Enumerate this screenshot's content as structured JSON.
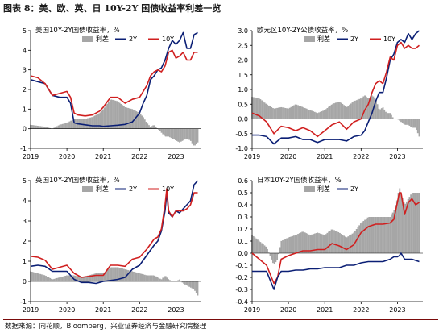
{
  "figure": {
    "title": "图表 8：美、欧、英、日 10Y-2Y 国债收益率利差一览",
    "source": "数据来源：同花顺，Bloomberg，兴业证券经济与金融研究院整理"
  },
  "colors": {
    "spread": "#a6a6a6",
    "two_year": "#0b1f75",
    "ten_year": "#d01f1f",
    "axis": "#000000"
  },
  "chart_data": [
    {
      "type": "line",
      "title": "美国10Y-2Y国债收益率，%",
      "legend": [
        "利差",
        "2Y",
        "10Y"
      ],
      "legend_placement": "top",
      "xlim": [
        2019.0,
        2023.7
      ],
      "ylim": [
        -1,
        5
      ],
      "yticks": [
        "-1",
        "0",
        "1",
        "2",
        "3",
        "4",
        "5"
      ],
      "ytick_values": [
        -1,
        0,
        1,
        2,
        3,
        4,
        5
      ],
      "xticks": [
        "2019",
        "2020",
        "2021",
        "2022",
        "2023"
      ],
      "xtick_values": [
        2019,
        2020,
        2021,
        2022,
        2023
      ],
      "grid": false,
      "x": [
        2019.0,
        2019.2,
        2019.4,
        2019.6,
        2019.8,
        2020.0,
        2020.1,
        2020.2,
        2020.3,
        2020.5,
        2020.7,
        2020.9,
        2021.0,
        2021.2,
        2021.4,
        2021.6,
        2021.8,
        2022.0,
        2022.1,
        2022.2,
        2022.3,
        2022.4,
        2022.5,
        2022.6,
        2022.7,
        2022.8,
        2022.9,
        2023.0,
        2023.1,
        2023.2,
        2023.3,
        2023.4,
        2023.5,
        2023.6
      ],
      "series": [
        {
          "name": "利差",
          "role": "spread",
          "values": [
            0.2,
            0.15,
            0.1,
            0.0,
            0.2,
            0.3,
            0.4,
            0.5,
            0.5,
            0.5,
            0.6,
            0.8,
            1.0,
            1.5,
            1.4,
            1.1,
            1.0,
            0.8,
            0.6,
            0.3,
            0.1,
            0.2,
            0.0,
            -0.2,
            -0.4,
            -0.4,
            -0.5,
            -0.6,
            -0.7,
            -0.6,
            -0.5,
            -0.6,
            -0.9,
            -0.7
          ]
        },
        {
          "name": "2Y",
          "role": "two_year",
          "values": [
            2.5,
            2.4,
            2.3,
            1.7,
            1.6,
            1.6,
            1.3,
            0.3,
            0.25,
            0.2,
            0.15,
            0.15,
            0.12,
            0.15,
            0.18,
            0.22,
            0.35,
            0.8,
            1.3,
            1.7,
            2.5,
            2.7,
            3.0,
            3.1,
            3.5,
            4.1,
            4.5,
            4.3,
            4.5,
            4.9,
            4.1,
            4.1,
            4.8,
            4.9
          ]
        },
        {
          "name": "10Y",
          "role": "ten_year",
          "values": [
            2.7,
            2.6,
            2.3,
            1.7,
            1.8,
            1.9,
            1.6,
            0.8,
            0.7,
            0.65,
            0.7,
            0.9,
            1.1,
            1.6,
            1.6,
            1.3,
            1.5,
            1.6,
            1.9,
            2.2,
            2.7,
            2.9,
            3.0,
            2.9,
            3.2,
            3.9,
            4.0,
            3.6,
            3.7,
            3.9,
            3.5,
            3.5,
            3.9,
            3.9
          ]
        }
      ]
    },
    {
      "type": "line",
      "title": "欧元区10Y-2Y公债收益率，%",
      "legend": [
        "利差",
        "2Y",
        "10Y"
      ],
      "legend_placement": "top",
      "xlim": [
        2019.0,
        2023.7
      ],
      "ylim": [
        -1.0,
        3.0
      ],
      "yticks": [
        "-1.0",
        "-0.5",
        "0.0",
        "0.5",
        "1.0",
        "1.5",
        "2.0",
        "2.5",
        "3.0"
      ],
      "ytick_values": [
        -1.0,
        -0.5,
        0.0,
        0.5,
        1.0,
        1.5,
        2.0,
        2.5,
        3.0
      ],
      "xticks": [
        "2019",
        "2020",
        "2021",
        "2022",
        "2023"
      ],
      "xtick_values": [
        2019,
        2020,
        2021,
        2022,
        2023
      ],
      "grid": false,
      "x": [
        2019.0,
        2019.2,
        2019.4,
        2019.6,
        2019.8,
        2020.0,
        2020.2,
        2020.4,
        2020.6,
        2020.8,
        2021.0,
        2021.2,
        2021.4,
        2021.6,
        2021.8,
        2022.0,
        2022.1,
        2022.2,
        2022.3,
        2022.4,
        2022.5,
        2022.6,
        2022.7,
        2022.8,
        2022.9,
        2023.0,
        2023.1,
        2023.2,
        2023.3,
        2023.4,
        2023.5,
        2023.6
      ],
      "series": [
        {
          "name": "利差",
          "role": "spread",
          "values": [
            0.75,
            0.7,
            0.5,
            0.35,
            0.4,
            0.35,
            0.5,
            0.4,
            0.3,
            0.2,
            0.3,
            0.5,
            0.6,
            0.4,
            0.6,
            0.7,
            0.8,
            0.7,
            0.8,
            0.7,
            0.3,
            0.4,
            0.2,
            0.2,
            0.0,
            0.0,
            -0.1,
            -0.2,
            -0.2,
            -0.3,
            -0.3,
            -0.6
          ]
        },
        {
          "name": "2Y",
          "role": "two_year",
          "values": [
            -0.55,
            -0.55,
            -0.6,
            -0.85,
            -0.65,
            -0.65,
            -0.6,
            -0.7,
            -0.7,
            -0.8,
            -0.7,
            -0.7,
            -0.7,
            -0.75,
            -0.6,
            -0.55,
            -0.4,
            -0.1,
            0.2,
            0.6,
            0.9,
            0.9,
            1.4,
            2.0,
            2.2,
            2.6,
            2.7,
            2.6,
            2.9,
            2.7,
            2.9,
            3.0
          ]
        },
        {
          "name": "10Y",
          "role": "ten_year",
          "values": [
            0.2,
            0.1,
            -0.1,
            -0.5,
            -0.25,
            -0.3,
            -0.4,
            -0.3,
            -0.4,
            -0.6,
            -0.4,
            -0.2,
            -0.1,
            -0.35,
            -0.1,
            0.0,
            0.3,
            0.5,
            0.9,
            1.2,
            1.3,
            1.2,
            1.6,
            2.1,
            2.0,
            2.5,
            2.6,
            2.4,
            2.5,
            2.4,
            2.4,
            2.5
          ]
        }
      ]
    },
    {
      "type": "line",
      "title": "英国10Y-2Y国债收益率，%",
      "legend": [
        "利差",
        "2Y",
        "10Y"
      ],
      "legend_placement": "top",
      "xlim": [
        2019.0,
        2023.7
      ],
      "ylim": [
        -1,
        5
      ],
      "yticks": [
        "-1",
        "0",
        "1",
        "2",
        "3",
        "4",
        "5"
      ],
      "ytick_values": [
        -1,
        0,
        1,
        2,
        3,
        4,
        5
      ],
      "xticks": [
        "2019",
        "2020",
        "2021",
        "2022",
        "2023"
      ],
      "xtick_values": [
        2019,
        2020,
        2021,
        2022,
        2023
      ],
      "grid": false,
      "x": [
        2019.0,
        2019.2,
        2019.4,
        2019.6,
        2019.8,
        2020.0,
        2020.2,
        2020.4,
        2020.6,
        2020.8,
        2021.0,
        2021.2,
        2021.4,
        2021.6,
        2021.8,
        2022.0,
        2022.2,
        2022.4,
        2022.5,
        2022.6,
        2022.7,
        2022.75,
        2022.8,
        2022.9,
        2023.0,
        2023.1,
        2023.2,
        2023.3,
        2023.4,
        2023.5,
        2023.6
      ],
      "series": [
        {
          "name": "利差",
          "role": "spread",
          "values": [
            0.5,
            0.4,
            0.3,
            0.1,
            0.2,
            0.3,
            0.3,
            0.2,
            0.3,
            0.4,
            0.4,
            0.7,
            0.7,
            0.6,
            0.5,
            0.4,
            0.3,
            0.3,
            0.2,
            0.1,
            0.3,
            0.2,
            0.1,
            0.0,
            0.0,
            0.1,
            -0.1,
            -0.2,
            -0.3,
            -0.4,
            -0.7
          ]
        },
        {
          "name": "2Y",
          "role": "two_year",
          "values": [
            0.75,
            0.8,
            0.75,
            0.5,
            0.5,
            0.5,
            0.1,
            -0.05,
            -0.05,
            -0.1,
            0.0,
            0.05,
            0.1,
            0.2,
            0.6,
            0.8,
            1.3,
            1.8,
            2.0,
            2.5,
            3.5,
            4.4,
            3.4,
            3.2,
            3.5,
            3.4,
            3.6,
            3.8,
            4.0,
            4.8,
            5.0
          ]
        },
        {
          "name": "10Y",
          "role": "ten_year",
          "values": [
            1.25,
            1.2,
            1.05,
            0.6,
            0.7,
            0.8,
            0.4,
            0.2,
            0.25,
            0.3,
            0.3,
            0.8,
            0.8,
            0.75,
            1.1,
            1.2,
            1.6,
            2.1,
            2.2,
            2.6,
            3.8,
            4.6,
            3.5,
            3.2,
            3.5,
            3.5,
            3.5,
            3.6,
            3.8,
            4.4,
            4.4
          ]
        }
      ]
    },
    {
      "type": "line",
      "title": "日本10Y-2Y国债收益率，%",
      "legend": [
        "利差",
        "2Y"
      ],
      "legend_placement": "top",
      "xlim": [
        2019.0,
        2023.7
      ],
      "ylim": [
        -0.4,
        0.6
      ],
      "yticks": [
        "-0.4",
        "-0.3",
        "-0.2",
        "-0.1",
        "0.0",
        "0.1",
        "0.2",
        "0.3",
        "0.4",
        "0.5",
        "0.6"
      ],
      "ytick_values": [
        -0.4,
        -0.3,
        -0.2,
        -0.1,
        0.0,
        0.1,
        0.2,
        0.3,
        0.4,
        0.5,
        0.6
      ],
      "xticks": [
        "2019",
        "2020",
        "2021",
        "2022",
        "2023"
      ],
      "xtick_values": [
        2019,
        2020,
        2021,
        2022,
        2023
      ],
      "grid": false,
      "x": [
        2019.0,
        2019.2,
        2019.4,
        2019.6,
        2019.7,
        2019.8,
        2020.0,
        2020.2,
        2020.4,
        2020.6,
        2020.8,
        2021.0,
        2021.2,
        2021.4,
        2021.6,
        2021.8,
        2022.0,
        2022.2,
        2022.4,
        2022.6,
        2022.8,
        2022.9,
        2023.0,
        2023.05,
        2023.1,
        2023.2,
        2023.3,
        2023.4,
        2023.5,
        2023.6
      ],
      "series": [
        {
          "name": "利差",
          "role": "spread",
          "values": [
            0.15,
            0.1,
            0.05,
            -0.1,
            -0.05,
            0.1,
            0.13,
            0.15,
            0.18,
            0.15,
            0.17,
            0.15,
            0.2,
            0.17,
            0.13,
            0.17,
            0.25,
            0.3,
            0.3,
            0.3,
            0.3,
            0.35,
            0.45,
            0.55,
            0.5,
            0.4,
            0.45,
            0.5,
            0.5,
            0.5
          ]
        },
        {
          "name": "10Y",
          "role": "ten_year",
          "values": [
            0.0,
            -0.05,
            -0.1,
            -0.25,
            -0.2,
            -0.05,
            -0.02,
            0.0,
            0.02,
            0.02,
            0.03,
            0.03,
            0.08,
            0.06,
            0.03,
            0.07,
            0.17,
            0.22,
            0.24,
            0.24,
            0.25,
            0.28,
            0.42,
            0.5,
            0.5,
            0.32,
            0.42,
            0.45,
            0.4,
            0.42
          ]
        },
        {
          "name": "2Y",
          "role": "two_year",
          "values": [
            -0.15,
            -0.15,
            -0.15,
            -0.3,
            -0.2,
            -0.15,
            -0.15,
            -0.14,
            -0.14,
            -0.13,
            -0.13,
            -0.12,
            -0.12,
            -0.12,
            -0.1,
            -0.1,
            -0.08,
            -0.07,
            -0.07,
            -0.07,
            -0.05,
            -0.03,
            -0.03,
            -0.02,
            0.0,
            -0.05,
            -0.05,
            -0.05,
            -0.06,
            -0.07
          ]
        }
      ]
    }
  ]
}
